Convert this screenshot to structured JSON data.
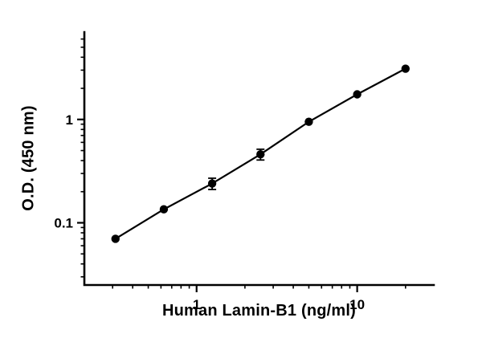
{
  "chart_data": {
    "type": "scatter",
    "title": "",
    "xlabel": "Human Lamin-B1 (ng/ml)",
    "ylabel": "O.D. (450 nm)",
    "x_scale": "log",
    "y_scale": "log",
    "x": [
      0.3125,
      0.625,
      1.25,
      2.5,
      5,
      10,
      20
    ],
    "y": [
      0.07,
      0.135,
      0.24,
      0.46,
      0.95,
      1.75,
      3.1
    ],
    "y_err": [
      0,
      0,
      0.03,
      0.055,
      0,
      0,
      0
    ],
    "x_range": [
      0.2,
      30
    ],
    "y_range": [
      0.025,
      7
    ],
    "x_major_ticks": [
      1,
      10
    ],
    "y_major_ticks": [
      0.1,
      1
    ],
    "grid": false,
    "legend": false,
    "line_style": "solid",
    "marker": "filled-circle",
    "marker_color": "#000000",
    "line_color": "#000000",
    "axis_color": "#000000",
    "background_color": "#ffffff"
  }
}
